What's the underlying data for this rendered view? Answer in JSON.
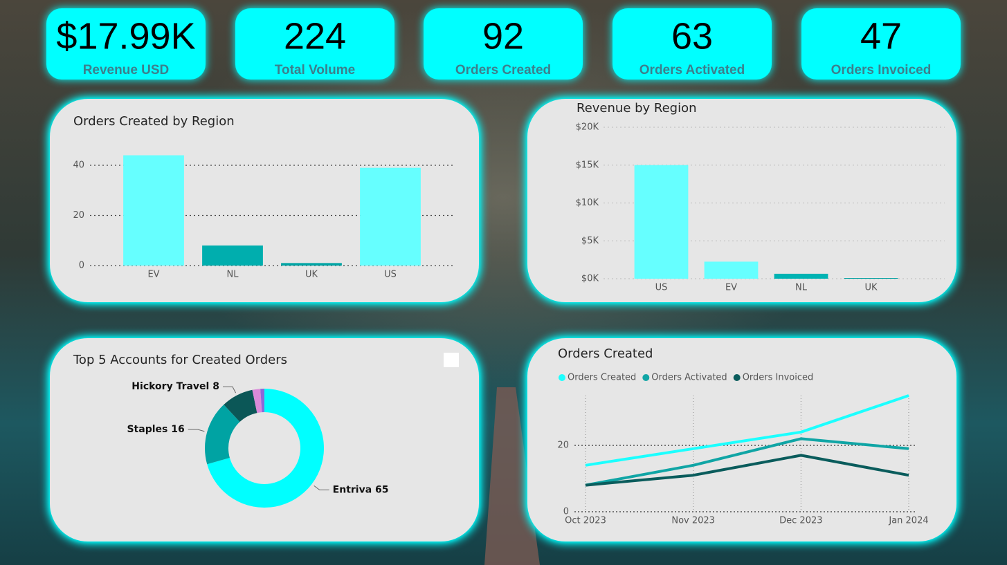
{
  "kpis": [
    {
      "value": "$17.99K",
      "label": "Revenue USD"
    },
    {
      "value": 224,
      "label": "Total Volume"
    },
    {
      "value": 92,
      "label": "Orders Created"
    },
    {
      "value": 63,
      "label": "Orders Activated"
    },
    {
      "value": 47,
      "label": "Orders Invoiced"
    }
  ],
  "chart_data": [
    {
      "type": "bar",
      "title": "Orders Created by Region",
      "categories": [
        "EV",
        "NL",
        "UK",
        "US"
      ],
      "values": [
        44,
        8,
        1,
        39
      ],
      "colors": [
        "#66ffff",
        "#00aeae",
        "#00a4a4",
        "#66ffff"
      ],
      "ylim": [
        0,
        45
      ],
      "yticks": [
        0,
        20,
        40
      ],
      "grid": true,
      "grid_color": "#444444"
    },
    {
      "type": "bar",
      "title": "Revenue by Region",
      "categories": [
        "US",
        "EV",
        "NL",
        "UK"
      ],
      "values": [
        15000,
        2250,
        650,
        90
      ],
      "colors": [
        "#66ffff",
        "#66ffff",
        "#00b3b3",
        "#00a0a0"
      ],
      "ylim": [
        0,
        20000
      ],
      "yticks": [
        {
          "value": 0,
          "label": "$0K"
        },
        {
          "value": 5000,
          "label": "$5K"
        },
        {
          "value": 10000,
          "label": "$10K"
        },
        {
          "value": 15000,
          "label": "$15K"
        },
        {
          "value": 20000,
          "label": "$20K"
        }
      ],
      "grid": true,
      "grid_color": "#c4c4c4"
    },
    {
      "type": "donut",
      "title": "Top 5 Accounts for Created Orders",
      "categories": [
        "Entriva",
        "Staples",
        "Hickory Travel",
        null,
        null
      ],
      "values": [
        65,
        16,
        8,
        2,
        1
      ],
      "colors": [
        "#00ffff",
        "#00a3a3",
        "#0b5757",
        "#d98ad9",
        "#8a6ad9"
      ]
    },
    {
      "type": "line",
      "title": "Orders Created",
      "x": [
        "Oct 2023",
        "Nov 2023",
        "Dec 2023",
        "Jan 2024"
      ],
      "series": [
        {
          "name": "Orders Created",
          "color": "#1cffff",
          "values": [
            14,
            19,
            24,
            35
          ]
        },
        {
          "name": "Orders Activated",
          "color": "#10a5a5",
          "values": [
            8,
            14,
            22,
            19
          ]
        },
        {
          "name": "Orders Invoiced",
          "color": "#0a5c5c",
          "values": [
            8,
            11,
            17,
            11
          ]
        }
      ],
      "ylim": [
        0,
        35
      ],
      "yticks": [
        0,
        20
      ],
      "grid": true,
      "grid_color": "#333333"
    }
  ]
}
